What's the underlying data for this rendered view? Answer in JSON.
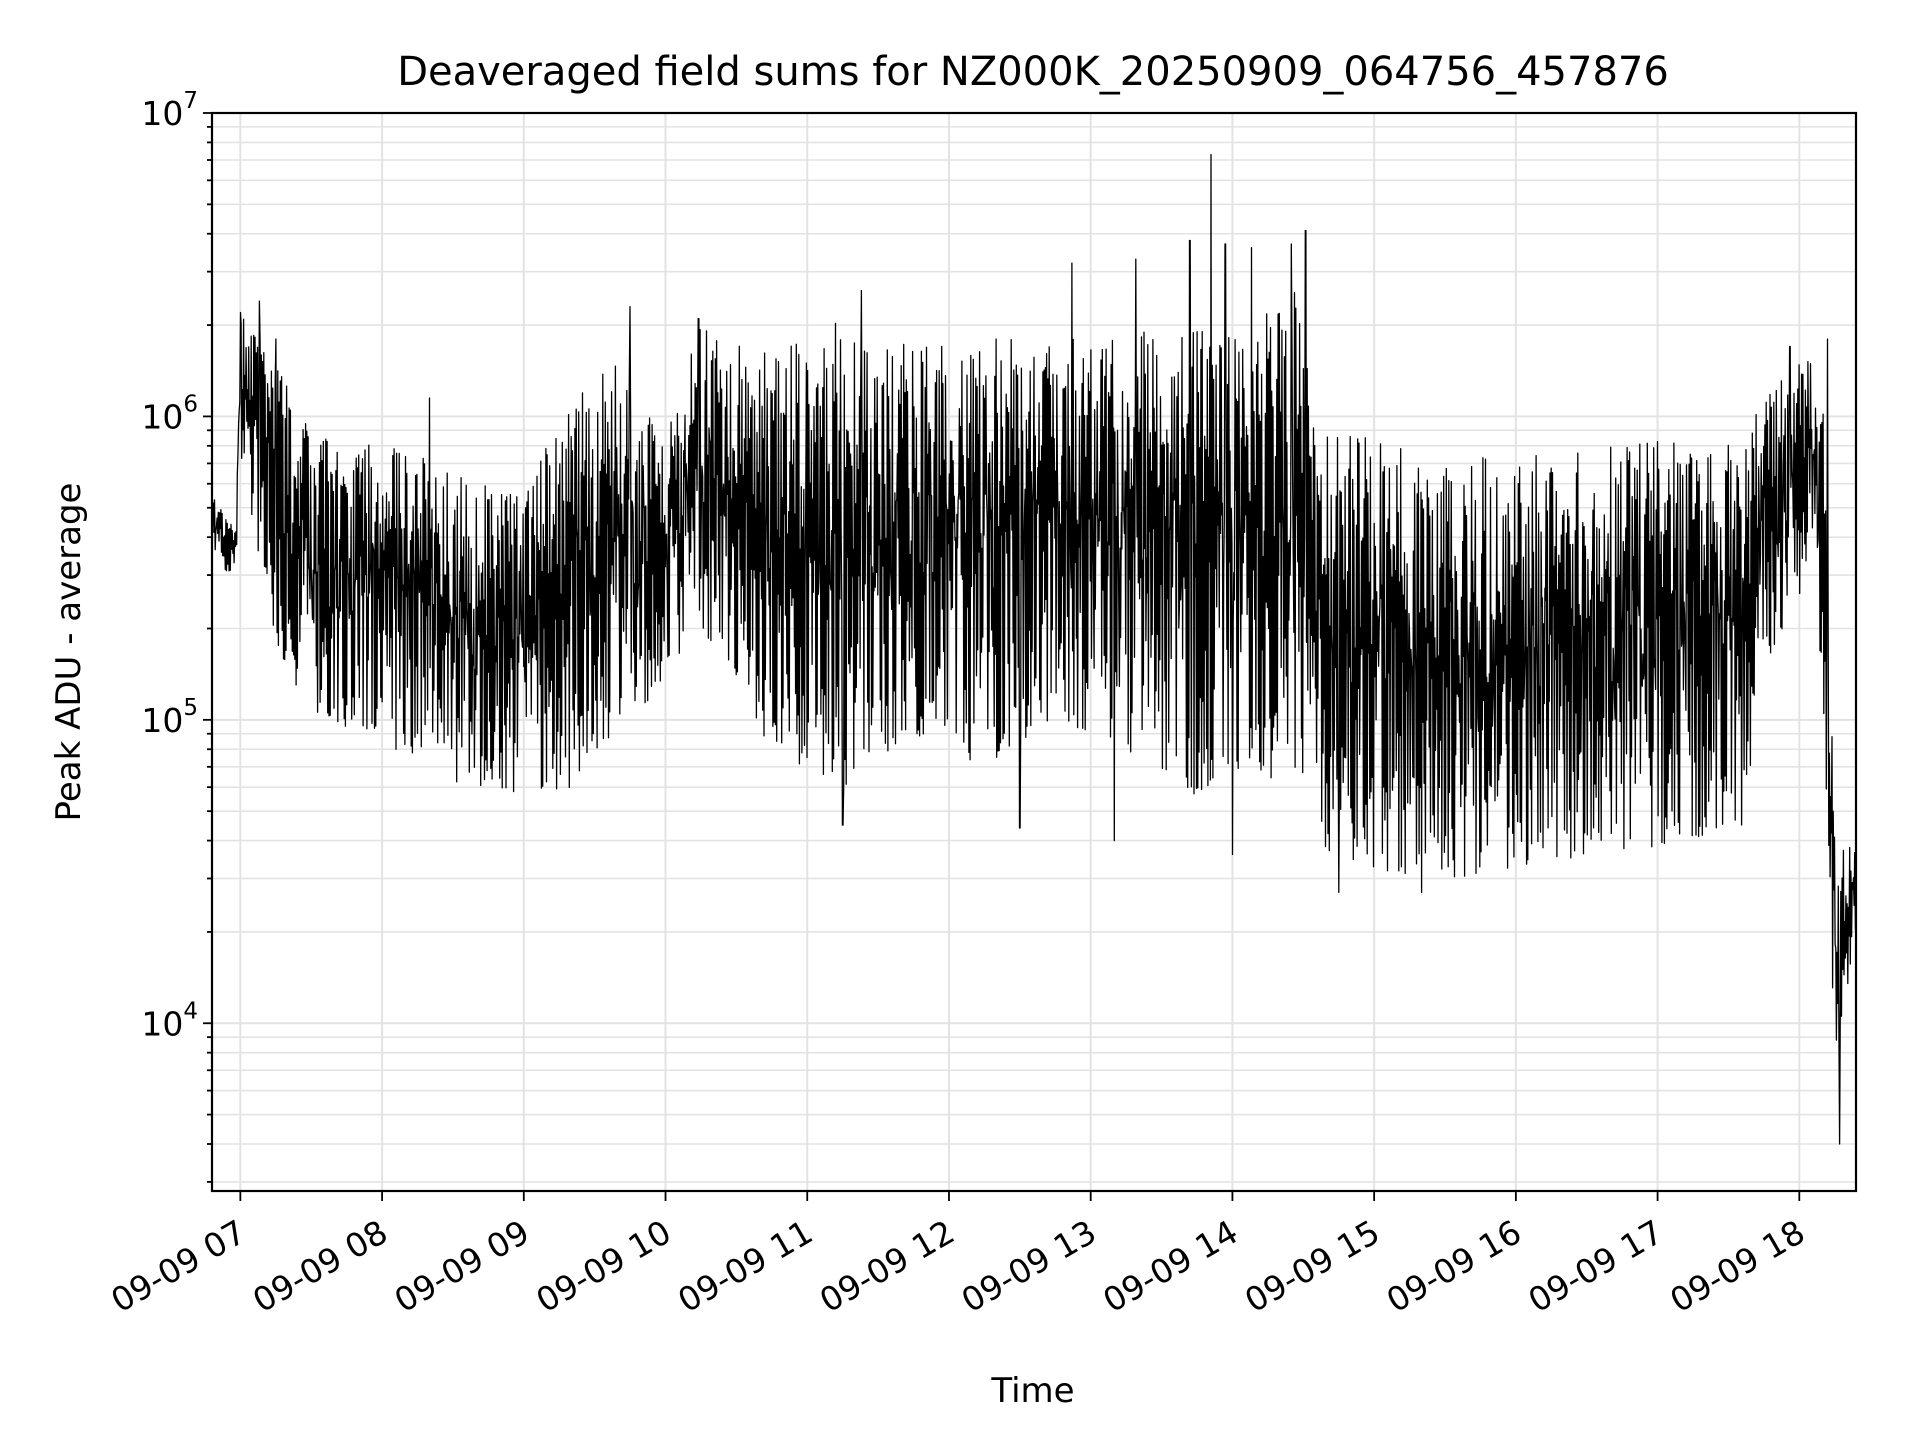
{
  "chart_data": {
    "type": "line",
    "title": "Deaveraged field sums for NZ000K_20250909_064756_457876",
    "xlabel": "Time",
    "ylabel": "Peak ADU - average",
    "yscale": "log",
    "ylim": [
      2800,
      10000000
    ],
    "xlim": [
      "2025-09-09 06:48",
      "2025-09-09 18:24"
    ],
    "grid": "major and minor, light gray",
    "line_color": "#000000",
    "x_ticks": [
      {
        "t": "2025-09-09 07:00",
        "label": "09-09 07"
      },
      {
        "t": "2025-09-09 08:00",
        "label": "09-09 08"
      },
      {
        "t": "2025-09-09 09:00",
        "label": "09-09 09"
      },
      {
        "t": "2025-09-09 10:00",
        "label": "09-09 10"
      },
      {
        "t": "2025-09-09 11:00",
        "label": "09-09 11"
      },
      {
        "t": "2025-09-09 12:00",
        "label": "09-09 12"
      },
      {
        "t": "2025-09-09 13:00",
        "label": "09-09 13"
      },
      {
        "t": "2025-09-09 14:00",
        "label": "09-09 14"
      },
      {
        "t": "2025-09-09 15:00",
        "label": "09-09 15"
      },
      {
        "t": "2025-09-09 16:00",
        "label": "09-09 16"
      },
      {
        "t": "2025-09-09 17:00",
        "label": "09-09 17"
      },
      {
        "t": "2025-09-09 18:00",
        "label": "09-09 18"
      }
    ],
    "y_ticks": [
      {
        "value": 10000,
        "base": "10",
        "exp": "4"
      },
      {
        "value": 100000,
        "base": "10",
        "exp": "5"
      },
      {
        "value": 1000000,
        "base": "10",
        "exp": "6"
      },
      {
        "value": 10000000,
        "base": "10",
        "exp": "7"
      }
    ],
    "series": [
      {
        "envelope": [
          {
            "t": "2025-09-09 06:48",
            "low": 350000,
            "high": 550000
          },
          {
            "t": "2025-09-09 06:58",
            "low": 280000,
            "high": 450000
          },
          {
            "t": "2025-09-09 07:00",
            "low": 700000,
            "high": 2200000
          },
          {
            "t": "2025-09-09 07:15",
            "low": 180000,
            "high": 1500000
          },
          {
            "t": "2025-09-09 07:30",
            "low": 100000,
            "high": 900000
          },
          {
            "t": "2025-09-09 08:00",
            "low": 85000,
            "high": 800000
          },
          {
            "t": "2025-09-09 08:30",
            "low": 62000,
            "high": 700000
          },
          {
            "t": "2025-09-09 09:00",
            "low": 56000,
            "high": 550000
          },
          {
            "t": "2025-09-09 09:20",
            "low": 60000,
            "high": 1200000
          },
          {
            "t": "2025-09-09 09:40",
            "low": 95000,
            "high": 1500000
          },
          {
            "t": "2025-09-09 10:00",
            "low": 130000,
            "high": 900000
          },
          {
            "t": "2025-09-09 10:15",
            "low": 200000,
            "high": 2000000
          },
          {
            "t": "2025-09-09 10:45",
            "low": 80000,
            "high": 1600000
          },
          {
            "t": "2025-09-09 11:15",
            "low": 60000,
            "high": 2200000
          },
          {
            "t": "2025-09-09 11:45",
            "low": 90000,
            "high": 1700000
          },
          {
            "t": "2025-09-09 12:15",
            "low": 70000,
            "high": 1800000
          },
          {
            "t": "2025-09-09 12:45",
            "low": 100000,
            "high": 1800000
          },
          {
            "t": "2025-09-09 13:15",
            "low": 80000,
            "high": 1800000
          },
          {
            "t": "2025-09-09 13:45",
            "low": 55000,
            "high": 2500000
          },
          {
            "t": "2025-09-09 14:00",
            "low": 70000,
            "high": 1800000
          },
          {
            "t": "2025-09-09 14:30",
            "low": 60000,
            "high": 2800000
          },
          {
            "t": "2025-09-09 14:36",
            "low": 38000,
            "high": 880000
          },
          {
            "t": "2025-09-09 15:00",
            "low": 32000,
            "high": 850000
          },
          {
            "t": "2025-09-09 15:30",
            "low": 30000,
            "high": 800000
          },
          {
            "t": "2025-09-09 16:00",
            "low": 32000,
            "high": 800000
          },
          {
            "t": "2025-09-09 16:30",
            "low": 36000,
            "high": 780000
          },
          {
            "t": "2025-09-09 17:00",
            "low": 38000,
            "high": 850000
          },
          {
            "t": "2025-09-09 17:36",
            "low": 45000,
            "high": 800000
          },
          {
            "t": "2025-09-09 17:45",
            "low": 150000,
            "high": 1200000
          },
          {
            "t": "2025-09-09 18:05",
            "low": 300000,
            "high": 1600000
          },
          {
            "t": "2025-09-09 18:10",
            "low": 100000,
            "high": 1200000
          },
          {
            "t": "2025-09-09 18:15",
            "low": 8000,
            "high": 40000
          },
          {
            "t": "2025-09-09 18:24",
            "low": 18000,
            "high": 38000
          }
        ],
        "spikes": [
          {
            "t": "2025-09-09 07:00",
            "value": 2200000
          },
          {
            "t": "2025-09-09 07:08",
            "value": 2400000
          },
          {
            "t": "2025-09-09 07:15",
            "value": 1800000
          },
          {
            "t": "2025-09-09 08:20",
            "value": 1150000
          },
          {
            "t": "2025-09-09 09:45",
            "value": 2300000
          },
          {
            "t": "2025-09-09 10:14",
            "value": 2100000
          },
          {
            "t": "2025-09-09 11:23",
            "value": 2600000
          },
          {
            "t": "2025-09-09 12:52",
            "value": 3200000
          },
          {
            "t": "2025-09-09 13:19",
            "value": 3300000
          },
          {
            "t": "2025-09-09 13:42",
            "value": 3800000
          },
          {
            "t": "2025-09-09 13:51",
            "value": 7300000
          },
          {
            "t": "2025-09-09 13:57",
            "value": 3700000
          },
          {
            "t": "2025-09-09 14:08",
            "value": 3600000
          },
          {
            "t": "2025-09-09 14:25",
            "value": 3700000
          },
          {
            "t": "2025-09-09 14:31",
            "value": 4100000
          },
          {
            "t": "2025-09-09 17:56",
            "value": 1700000
          },
          {
            "t": "2025-09-09 18:12",
            "value": 1800000
          }
        ],
        "dips": [
          {
            "t": "2025-09-09 11:15",
            "value": 45000
          },
          {
            "t": "2025-09-09 12:30",
            "value": 44000
          },
          {
            "t": "2025-09-09 13:10",
            "value": 40000
          },
          {
            "t": "2025-09-09 14:00",
            "value": 36000
          },
          {
            "t": "2025-09-09 14:45",
            "value": 27000
          },
          {
            "t": "2025-09-09 15:20",
            "value": 27000
          },
          {
            "t": "2025-09-09 18:17",
            "value": 4000
          }
        ]
      }
    ]
  }
}
